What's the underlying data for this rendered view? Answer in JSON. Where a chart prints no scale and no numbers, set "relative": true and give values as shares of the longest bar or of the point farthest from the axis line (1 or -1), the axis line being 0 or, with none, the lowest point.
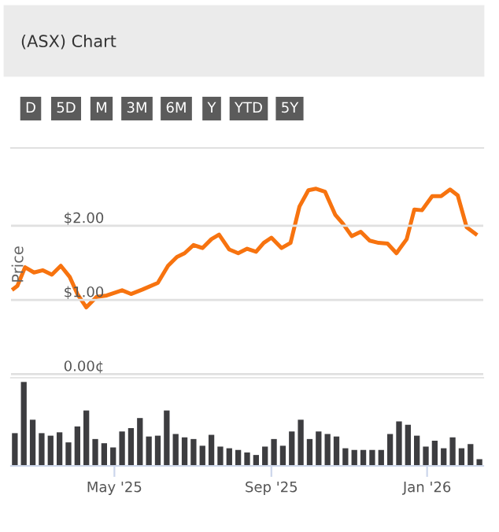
{
  "chart_data": [
    {
      "type": "line",
      "title": "(ASX) Chart",
      "ylabel": "Price",
      "annotations": [
        "D",
        "5D",
        "M",
        "3M",
        "6M",
        "Y",
        "YTD",
        "5Y"
      ],
      "x": [
        "2025-02-11",
        "2025-02-14",
        "2025-02-20",
        "2025-02-27",
        "2025-03-06",
        "2025-03-13",
        "2025-03-20",
        "2025-03-27",
        "2025-04-02",
        "2025-04-09",
        "2025-04-17",
        "2025-04-25",
        "2025-05-07",
        "2025-05-14",
        "2025-05-23",
        "2025-06-04",
        "2025-06-12",
        "2025-06-19",
        "2025-06-25",
        "2025-07-02",
        "2025-07-09",
        "2025-07-16",
        "2025-07-22",
        "2025-07-30",
        "2025-08-06",
        "2025-08-13",
        "2025-08-20",
        "2025-08-26",
        "2025-09-01",
        "2025-09-09",
        "2025-09-16",
        "2025-09-23",
        "2025-09-30",
        "2025-10-06",
        "2025-10-13",
        "2025-10-21",
        "2025-10-27",
        "2025-11-03",
        "2025-11-10",
        "2025-11-17",
        "2025-11-24",
        "2025-12-01",
        "2025-12-08",
        "2025-12-16",
        "2025-12-22",
        "2025-12-28",
        "2026-01-05",
        "2026-01-12",
        "2026-01-19",
        "2026-01-25",
        "2026-02-01",
        "2026-02-08"
      ],
      "series": [
        {
          "color": "#f7730f",
          "values": [
            1.15,
            1.19,
            1.44,
            1.37,
            1.4,
            1.34,
            1.46,
            1.31,
            1.08,
            0.9,
            1.04,
            1.06,
            1.13,
            1.08,
            1.14,
            1.23,
            1.46,
            1.58,
            1.63,
            1.74,
            1.7,
            1.82,
            1.88,
            1.68,
            1.63,
            1.69,
            1.65,
            1.77,
            1.84,
            1.7,
            1.77,
            2.26,
            2.48,
            2.5,
            2.46,
            2.15,
            2.03,
            1.86,
            1.92,
            1.8,
            1.77,
            1.76,
            1.63,
            1.82,
            2.22,
            2.21,
            2.4,
            2.4,
            2.49,
            2.41,
            1.98,
            1.89
          ]
        }
      ],
      "xlim": [
        "2025-02-09",
        "2026-02-14"
      ],
      "ylim": [
        -0.05,
        3.05
      ],
      "yticks": [
        {
          "value": 0,
          "label": "0.00¢"
        },
        {
          "value": 1,
          "label": "$1.00"
        },
        {
          "value": 2,
          "label": "$2.00"
        }
      ],
      "grid": "y",
      "tick_labels": "y"
    },
    {
      "type": "bar",
      "relative": true,
      "color": "#3d3d40",
      "x": [
        "2025-02-12",
        "2025-02-19",
        "2025-02-26",
        "2025-03-05",
        "2025-03-12",
        "2025-03-19",
        "2025-03-26",
        "2025-04-02",
        "2025-04-09",
        "2025-04-16",
        "2025-04-23",
        "2025-04-30",
        "2025-05-07",
        "2025-05-14",
        "2025-05-21",
        "2025-05-28",
        "2025-06-04",
        "2025-06-11",
        "2025-06-18",
        "2025-06-25",
        "2025-07-02",
        "2025-07-09",
        "2025-07-16",
        "2025-07-23",
        "2025-07-30",
        "2025-08-06",
        "2025-08-13",
        "2025-08-20",
        "2025-08-27",
        "2025-09-03",
        "2025-09-10",
        "2025-09-17",
        "2025-09-24",
        "2025-10-01",
        "2025-10-08",
        "2025-10-15",
        "2025-10-22",
        "2025-10-29",
        "2025-11-05",
        "2025-11-12",
        "2025-11-19",
        "2025-11-26",
        "2025-12-03",
        "2025-12-10",
        "2025-12-17",
        "2025-12-24",
        "2025-12-31",
        "2026-01-07",
        "2026-01-14",
        "2026-01-21",
        "2026-01-28",
        "2026-02-04",
        "2026-02-11"
      ],
      "values": [
        0.39,
        1,
        0.55,
        0.39,
        0.36,
        0.4,
        0.28,
        0.47,
        0.66,
        0.32,
        0.27,
        0.22,
        0.41,
        0.45,
        0.57,
        0.35,
        0.36,
        0.66,
        0.38,
        0.34,
        0.32,
        0.24,
        0.37,
        0.23,
        0.21,
        0.19,
        0.16,
        0.13,
        0.23,
        0.32,
        0.24,
        0.41,
        0.55,
        0.32,
        0.41,
        0.38,
        0.35,
        0.21,
        0.19,
        0.19,
        0.19,
        0.19,
        0.38,
        0.53,
        0.49,
        0.36,
        0.23,
        0.3,
        0.21,
        0.34,
        0.21,
        0.26,
        0.08
      ],
      "xlim": [
        "2025-02-09",
        "2026-02-14"
      ],
      "xticks": [
        {
          "value": "2025-05-01",
          "label": "May '25"
        },
        {
          "value": "2025-09-01",
          "label": "Sep '25"
        },
        {
          "value": "2026-01-01",
          "label": "Jan '26"
        }
      ],
      "tick_labels": "x"
    }
  ]
}
